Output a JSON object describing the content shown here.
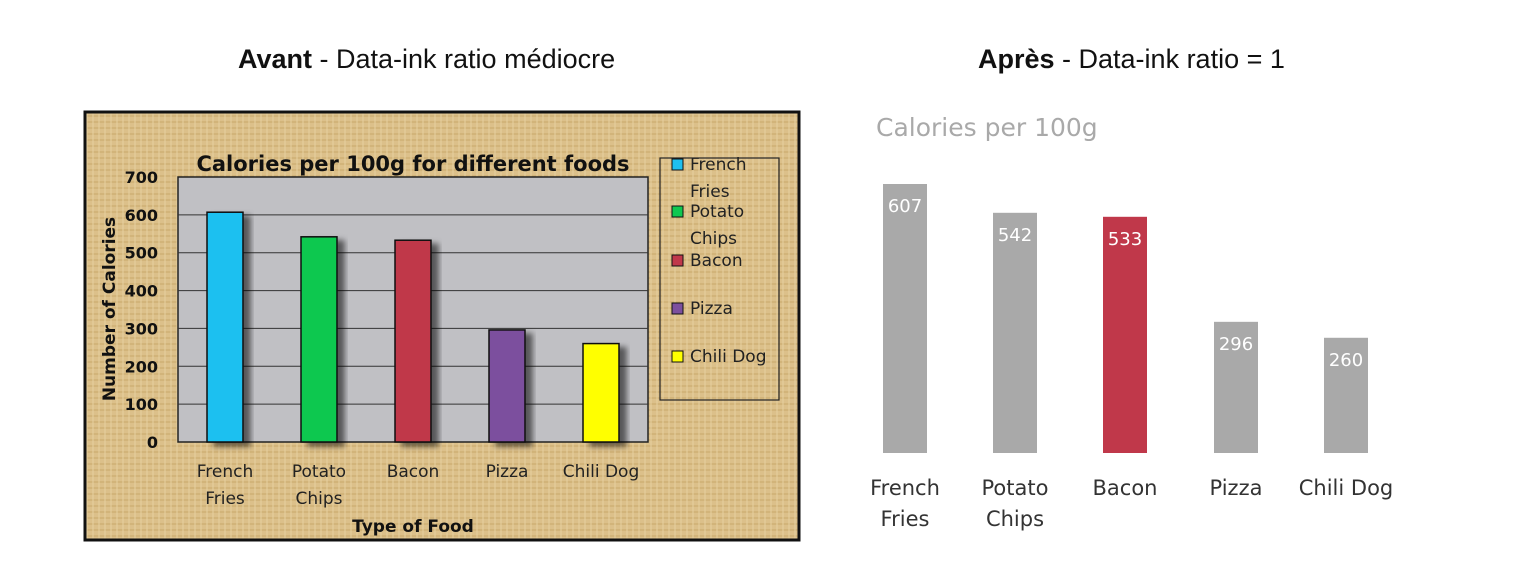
{
  "headings": {
    "left_bold": "Avant",
    "left_rest": " - Data-ink ratio médiocre",
    "right_bold": "Après",
    "right_rest": " - Data-ink ratio = 1"
  },
  "chart_data": [
    {
      "type": "bar",
      "title": "Calories per 100g for different foods",
      "xlabel": "Type of Food",
      "ylabel": "Number of Calories",
      "categories": [
        [
          "French",
          "Fries"
        ],
        [
          "Potato",
          "Chips"
        ],
        [
          "Bacon"
        ],
        [
          "Pizza"
        ],
        [
          "Chili Dog"
        ]
      ],
      "values": [
        607,
        542,
        533,
        296,
        260
      ],
      "ylim": [
        0,
        700
      ],
      "yticks": [
        0,
        100,
        200,
        300,
        400,
        500,
        600,
        700
      ],
      "grid": true,
      "legend_position": "right",
      "legend": [
        {
          "label": [
            "French",
            "Fries"
          ],
          "color": "#1ec0f0"
        },
        {
          "label": [
            "Potato",
            "Chips"
          ],
          "color": "#10c850"
        },
        {
          "label": [
            "Bacon"
          ],
          "color": "#c0384a"
        },
        {
          "label": [
            "Pizza"
          ],
          "color": "#7c4f9e"
        },
        {
          "label": [
            "Chili Dog"
          ],
          "color": "#ffff00"
        }
      ],
      "colors": [
        "#1ec0f0",
        "#10c850",
        "#c0384a",
        "#7c4f9e",
        "#ffff00"
      ]
    },
    {
      "type": "bar",
      "title": "Calories per 100g",
      "categories": [
        [
          "French",
          "Fries"
        ],
        [
          "Potato",
          "Chips"
        ],
        [
          "Bacon"
        ],
        [
          "Pizza"
        ],
        [
          "Chili Dog"
        ]
      ],
      "values": [
        607,
        542,
        533,
        296,
        260
      ],
      "grid": false,
      "bar_color": "#a9a9a9",
      "highlight_color": "#c0384a",
      "highlight_index": 2
    }
  ]
}
